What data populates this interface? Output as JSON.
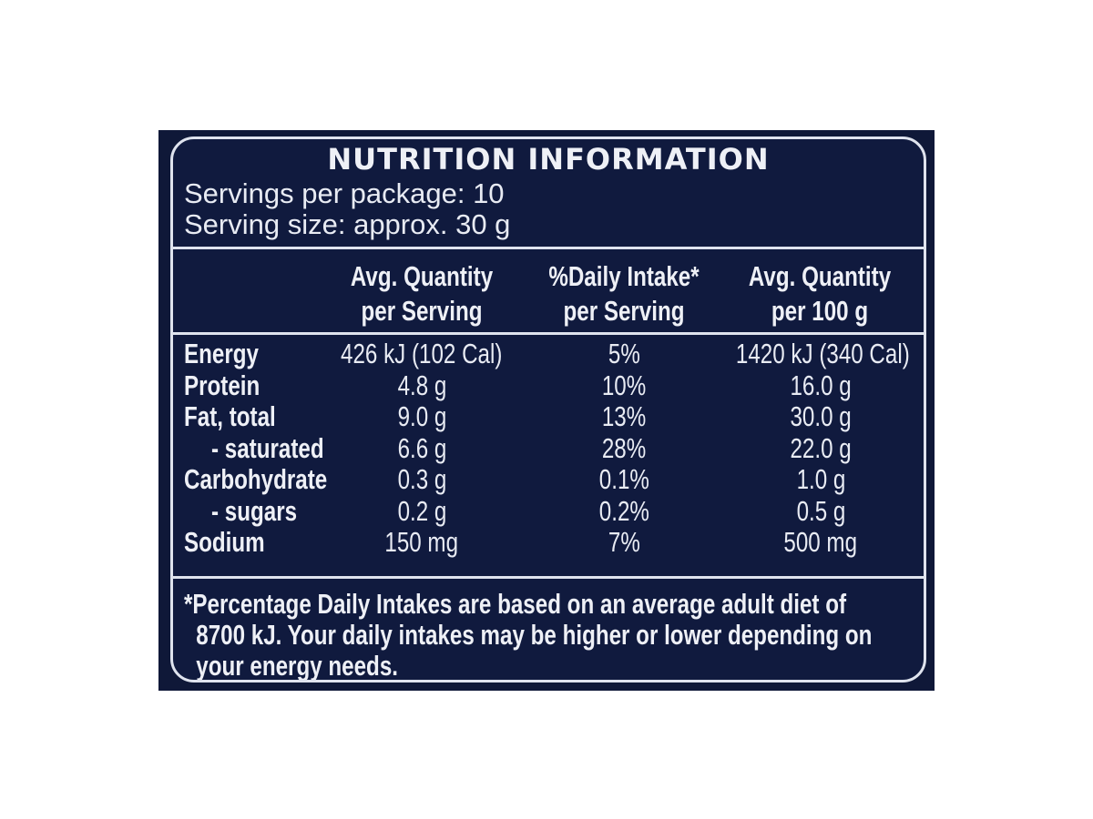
{
  "label": {
    "title": "NUTRITION INFORMATION",
    "servings_per_package": "Servings per package: 10",
    "serving_size": "Serving size: approx. 30 g",
    "columns": [
      {
        "line1": "Avg. Quantity",
        "line2": "per Serving"
      },
      {
        "line1": "%Daily Intake*",
        "line2": "per Serving"
      },
      {
        "line1": "Avg. Quantity",
        "line2": "per 100 g"
      }
    ],
    "rows": [
      {
        "name": "Energy",
        "per_serving": "426 kJ (102 Cal)",
        "daily_intake": "5%",
        "per_100g": "1420 kJ (340 Cal)"
      },
      {
        "name": "Protein",
        "per_serving": "4.8 g",
        "daily_intake": "10%",
        "per_100g": "16.0 g"
      },
      {
        "name": "Fat, total",
        "per_serving": "9.0 g",
        "daily_intake": "13%",
        "per_100g": "30.0 g"
      },
      {
        "name": "- saturated",
        "per_serving": "6.6 g",
        "daily_intake": "28%",
        "per_100g": "22.0 g"
      },
      {
        "name": "Carbohydrate",
        "per_serving": "0.3 g",
        "daily_intake": "0.1%",
        "per_100g": "1.0 g"
      },
      {
        "name": "- sugars",
        "per_serving": "0.2 g",
        "daily_intake": "0.2%",
        "per_100g": "0.5 g"
      },
      {
        "name": "Sodium",
        "per_serving": "150 mg",
        "daily_intake": "7%",
        "per_100g": "500 mg"
      }
    ],
    "footnote": [
      "*Percentage Daily Intakes are based on an average adult diet of",
      "8700 kJ. Your daily intakes may be higher or lower depending on",
      "your energy needs."
    ]
  },
  "colors": {
    "background": "#101a3e",
    "text": "#eef0f6"
  }
}
